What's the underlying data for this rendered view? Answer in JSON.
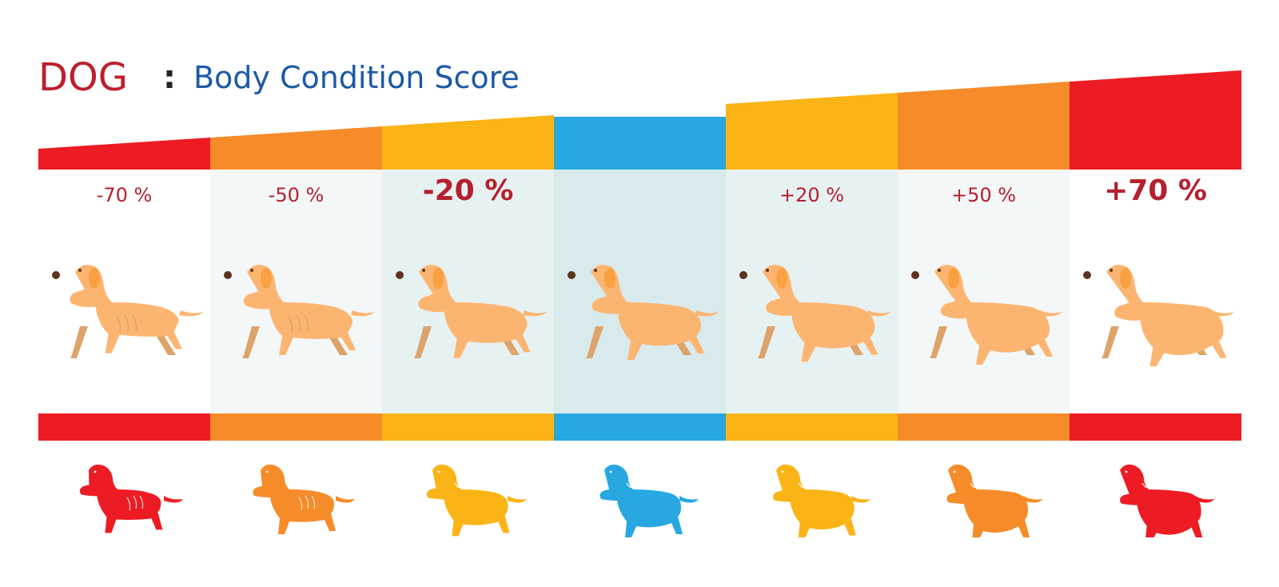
{
  "title": {
    "species": "DOG",
    "separator": ":",
    "subtitle": "Body Condition Score"
  },
  "colors": {
    "red": "#ed1c24",
    "orange": "#f68b29",
    "yellow": "#fbb416",
    "blue": "#27a8e0",
    "title_red": "#be1e2d",
    "title_blue": "#1c5aa6",
    "label_red": "#b5202e",
    "dog_fill": "#fcb571",
    "dog_shade": "#dda36a",
    "dog_ear": "#f9a040",
    "dog_nose": "#5a3420"
  },
  "categories": [
    {
      "label": "-70 %",
      "value": -70,
      "color": "#ed1c24",
      "bg": "#ffffff",
      "emphasis": false,
      "icon": "very-thin-dog-icon"
    },
    {
      "label": "-50 %",
      "value": -50,
      "color": "#f68b29",
      "bg": "#f3f7f8",
      "emphasis": false,
      "icon": "thin-dog-icon"
    },
    {
      "label": "-20 %",
      "value": -20,
      "color": "#fbb416",
      "bg": "#e6f1f2",
      "emphasis": true,
      "icon": "lean-dog-icon"
    },
    {
      "label": "",
      "value": 0,
      "color": "#27a8e0",
      "bg": "#d8eaec",
      "emphasis": false,
      "icon": "ideal-dog-icon"
    },
    {
      "label": "+20 %",
      "value": 20,
      "color": "#fbb416",
      "bg": "#e6f1f2",
      "emphasis": false,
      "icon": "overweight-dog-icon"
    },
    {
      "label": "+50 %",
      "value": 50,
      "color": "#f68b29",
      "bg": "#f3f7f8",
      "emphasis": false,
      "icon": "heavy-dog-icon"
    },
    {
      "label": "+70 %",
      "value": 70,
      "color": "#ed1c24",
      "bg": "#ffffff",
      "emphasis": true,
      "icon": "obese-dog-icon"
    }
  ]
}
